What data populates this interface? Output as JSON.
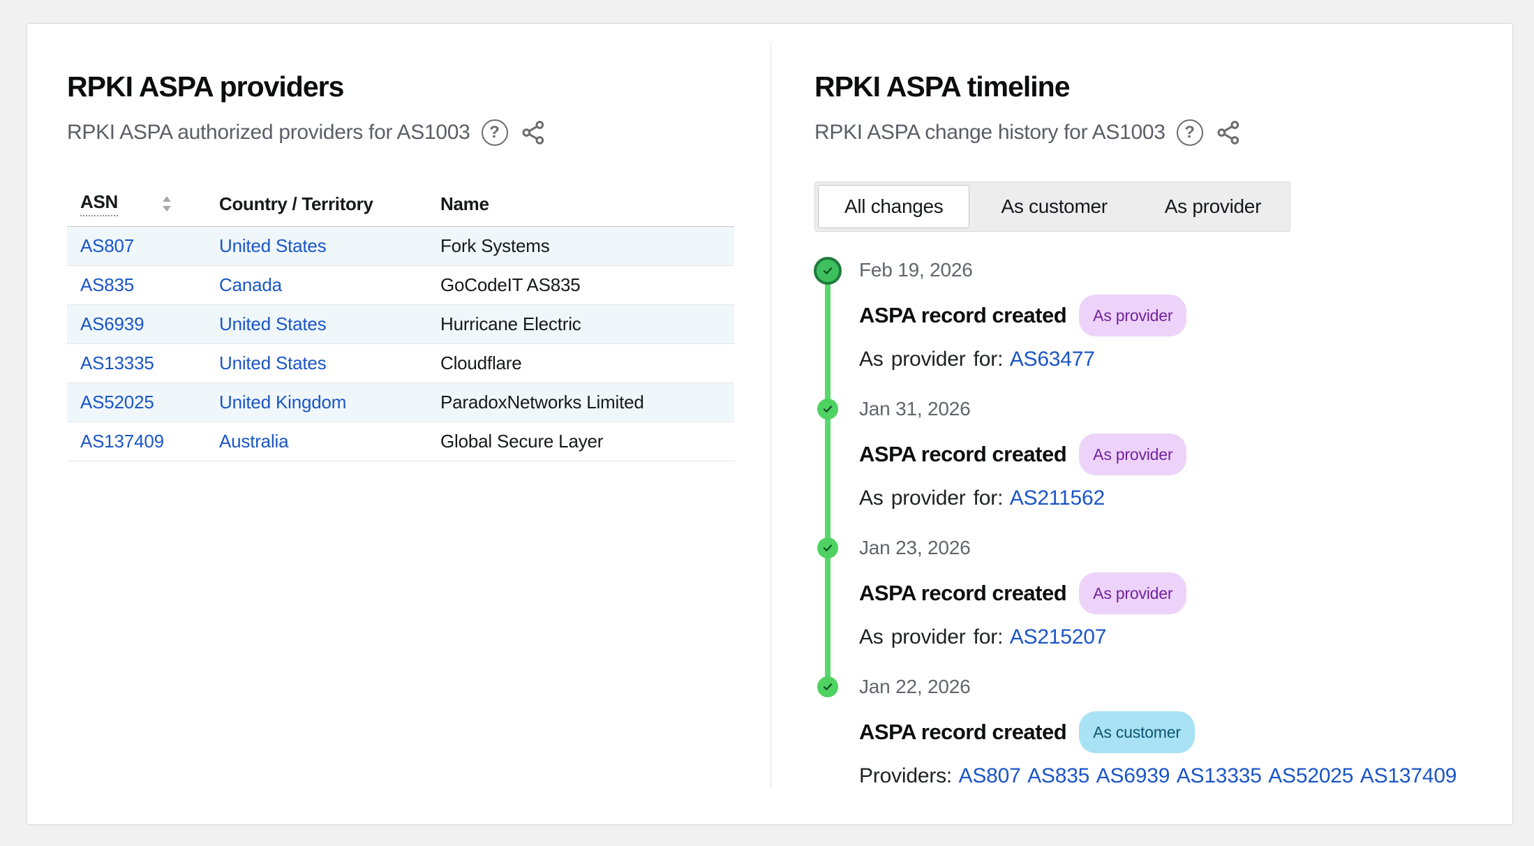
{
  "page": {
    "background_color": "#f1f1f2",
    "card_border_color": "#d9d9d9"
  },
  "providers_panel": {
    "title": "RPKI ASPA providers",
    "subtitle": "RPKI ASPA authorized providers for AS1003",
    "icons": {
      "help": "help-circle",
      "share": "share-nodes"
    },
    "table": {
      "columns": [
        {
          "label": "ASN",
          "sortable": true
        },
        {
          "label": "Country / Territory",
          "sortable": false
        },
        {
          "label": "Name",
          "sortable": false
        }
      ],
      "rows": [
        {
          "asn": "AS807",
          "country": "United States",
          "name": "Fork Systems"
        },
        {
          "asn": "AS835",
          "country": "Canada",
          "name": "GoCodeIT AS835"
        },
        {
          "asn": "AS6939",
          "country": "United States",
          "name": "Hurricane Electric"
        },
        {
          "asn": "AS13335",
          "country": "United States",
          "name": "Cloudflare"
        },
        {
          "asn": "AS52025",
          "country": "United Kingdom",
          "name": "ParadoxNetworks Limited"
        },
        {
          "asn": "AS137409",
          "country": "Australia",
          "name": "Global Secure Layer"
        }
      ]
    }
  },
  "timeline_panel": {
    "title": "RPKI ASPA timeline",
    "subtitle": "RPKI ASPA change history for AS1003",
    "icons": {
      "help": "help-circle",
      "share": "share-nodes"
    },
    "tabs": [
      {
        "label": "All changes",
        "selected": true
      },
      {
        "label": "As customer",
        "selected": false
      },
      {
        "label": "As provider",
        "selected": false
      }
    ],
    "entries": [
      {
        "date": "Feb 19, 2026",
        "title": "ASPA record created",
        "badge": "As provider",
        "badge_type": "provider",
        "detail_label": "As provider for:",
        "links": [
          "AS63477"
        ]
      },
      {
        "date": "Jan 31, 2026",
        "title": "ASPA record created",
        "badge": "As provider",
        "badge_type": "provider",
        "detail_label": "As provider for:",
        "links": [
          "AS211562"
        ]
      },
      {
        "date": "Jan 23, 2026",
        "title": "ASPA record created",
        "badge": "As provider",
        "badge_type": "provider",
        "detail_label": "As provider for:",
        "links": [
          "AS215207"
        ]
      },
      {
        "date": "Jan 22, 2026",
        "title": "ASPA record created",
        "badge": "As customer",
        "badge_type": "customer",
        "detail_label": "Providers:",
        "links": [
          "AS807",
          "AS835",
          "AS6939",
          "AS13335",
          "AS52025",
          "AS137409"
        ]
      }
    ]
  },
  "colors": {
    "link_blue": "#1b55c7",
    "timeline_line_green": "#58d86e",
    "timeline_circle_green": "#4ed262",
    "timeline_first_circle_fill": "#3ec05e",
    "timeline_first_circle_ring": "#1e7a3b",
    "badge_provider_bg": "#edd3f9",
    "badge_provider_text": "#70229e",
    "badge_customer_bg": "#a9e2f4",
    "badge_customer_text": "#0d5570",
    "row_stripe_blue": "#eff7fb"
  }
}
